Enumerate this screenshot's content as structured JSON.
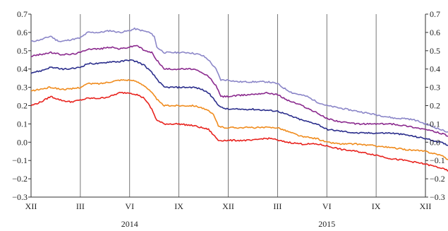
{
  "chart_data": {
    "type": "line",
    "title": "",
    "xlabel": "",
    "ylabel": "",
    "ylim": [
      -0.3,
      0.7
    ],
    "yticks": [
      "0.7",
      "0.6",
      "0.5",
      "0.4",
      "0.3",
      "0.2",
      "0.1",
      "0.0",
      "-0.1",
      "-0.2",
      "-0.3"
    ],
    "x_tick_labels": [
      "XII",
      "III",
      "VI",
      "IX",
      "XII",
      "III",
      "VI",
      "IX",
      "XII"
    ],
    "year_labels": [
      {
        "label": "2014",
        "at_tick": 2
      },
      {
        "label": "2015",
        "at_tick": 6
      }
    ],
    "grid": "vertical",
    "right_axis_mirrors_left": true,
    "series": [
      {
        "color": "#8b86c8",
        "values": [
          [
            0,
            0.55
          ],
          [
            0.2,
            0.56
          ],
          [
            0.4,
            0.58
          ],
          [
            0.5,
            0.56
          ],
          [
            0.6,
            0.55
          ],
          [
            0.8,
            0.56
          ],
          [
            1,
            0.57
          ],
          [
            1.15,
            0.6
          ],
          [
            1.4,
            0.6
          ],
          [
            1.6,
            0.61
          ],
          [
            1.8,
            0.6
          ],
          [
            2,
            0.61
          ],
          [
            2.1,
            0.62
          ],
          [
            2.25,
            0.61
          ],
          [
            2.4,
            0.6
          ],
          [
            2.5,
            0.58
          ],
          [
            2.55,
            0.52
          ],
          [
            2.7,
            0.49
          ],
          [
            3,
            0.49
          ],
          [
            3.2,
            0.49
          ],
          [
            3.4,
            0.48
          ],
          [
            3.5,
            0.47
          ],
          [
            3.6,
            0.45
          ],
          [
            3.75,
            0.4
          ],
          [
            3.85,
            0.34
          ],
          [
            4,
            0.34
          ],
          [
            4.2,
            0.33
          ],
          [
            4.5,
            0.33
          ],
          [
            4.8,
            0.33
          ],
          [
            5,
            0.32
          ],
          [
            5.1,
            0.3
          ],
          [
            5.3,
            0.27
          ],
          [
            5.6,
            0.25
          ],
          [
            5.8,
            0.22
          ],
          [
            6,
            0.2
          ],
          [
            6.2,
            0.19
          ],
          [
            6.4,
            0.18
          ],
          [
            6.6,
            0.17
          ],
          [
            6.8,
            0.16
          ],
          [
            7,
            0.15
          ],
          [
            7.2,
            0.14
          ],
          [
            7.4,
            0.13
          ],
          [
            7.6,
            0.13
          ],
          [
            7.8,
            0.12
          ],
          [
            8,
            0.1
          ],
          [
            8.2,
            0.08
          ],
          [
            8.4,
            0.06
          ],
          [
            8.6,
            0.05
          ],
          [
            8.8,
            0.06
          ],
          [
            9,
            0.06
          ]
        ]
      },
      {
        "color": "#8b2a8e",
        "values": [
          [
            0,
            0.47
          ],
          [
            0.2,
            0.48
          ],
          [
            0.4,
            0.49
          ],
          [
            0.6,
            0.48
          ],
          [
            0.8,
            0.48
          ],
          [
            1,
            0.49
          ],
          [
            1.15,
            0.51
          ],
          [
            1.4,
            0.51
          ],
          [
            1.6,
            0.52
          ],
          [
            1.8,
            0.51
          ],
          [
            2,
            0.52
          ],
          [
            2.15,
            0.53
          ],
          [
            2.3,
            0.5
          ],
          [
            2.45,
            0.49
          ],
          [
            2.55,
            0.45
          ],
          [
            2.7,
            0.4
          ],
          [
            3,
            0.4
          ],
          [
            3.3,
            0.4
          ],
          [
            3.45,
            0.38
          ],
          [
            3.6,
            0.36
          ],
          [
            3.75,
            0.31
          ],
          [
            3.85,
            0.25
          ],
          [
            4,
            0.25
          ],
          [
            4.4,
            0.26
          ],
          [
            4.8,
            0.27
          ],
          [
            5,
            0.26
          ],
          [
            5.2,
            0.23
          ],
          [
            5.5,
            0.2
          ],
          [
            5.8,
            0.16
          ],
          [
            6,
            0.13
          ],
          [
            6.3,
            0.11
          ],
          [
            6.6,
            0.1
          ],
          [
            7,
            0.1
          ],
          [
            7.3,
            0.1
          ],
          [
            7.6,
            0.09
          ],
          [
            8,
            0.07
          ],
          [
            8.3,
            0.05
          ],
          [
            8.5,
            0.03
          ],
          [
            8.7,
            0.01
          ],
          [
            9,
            0.0
          ]
        ]
      },
      {
        "color": "#2b2e8c",
        "values": [
          [
            0,
            0.38
          ],
          [
            0.2,
            0.39
          ],
          [
            0.4,
            0.41
          ],
          [
            0.6,
            0.4
          ],
          [
            0.8,
            0.4
          ],
          [
            1,
            0.41
          ],
          [
            1.15,
            0.43
          ],
          [
            1.4,
            0.43
          ],
          [
            1.6,
            0.44
          ],
          [
            1.8,
            0.44
          ],
          [
            2,
            0.45
          ],
          [
            2.15,
            0.44
          ],
          [
            2.3,
            0.42
          ],
          [
            2.45,
            0.38
          ],
          [
            2.6,
            0.33
          ],
          [
            2.7,
            0.3
          ],
          [
            3,
            0.3
          ],
          [
            3.3,
            0.3
          ],
          [
            3.45,
            0.29
          ],
          [
            3.6,
            0.27
          ],
          [
            3.75,
            0.22
          ],
          [
            3.85,
            0.19
          ],
          [
            4,
            0.18
          ],
          [
            4.5,
            0.18
          ],
          [
            5,
            0.17
          ],
          [
            5.2,
            0.15
          ],
          [
            5.5,
            0.12
          ],
          [
            5.8,
            0.1
          ],
          [
            6,
            0.07
          ],
          [
            6.3,
            0.06
          ],
          [
            6.6,
            0.05
          ],
          [
            7,
            0.05
          ],
          [
            7.3,
            0.05
          ],
          [
            7.6,
            0.04
          ],
          [
            8,
            0.02
          ],
          [
            8.3,
            0.0
          ],
          [
            8.5,
            -0.02
          ],
          [
            8.7,
            -0.04
          ],
          [
            9,
            -0.04
          ]
        ]
      },
      {
        "color": "#f08c1e",
        "values": [
          [
            0,
            0.28
          ],
          [
            0.2,
            0.29
          ],
          [
            0.4,
            0.3
          ],
          [
            0.6,
            0.29
          ],
          [
            0.8,
            0.29
          ],
          [
            1,
            0.3
          ],
          [
            1.15,
            0.32
          ],
          [
            1.4,
            0.32
          ],
          [
            1.6,
            0.33
          ],
          [
            1.8,
            0.34
          ],
          [
            2,
            0.34
          ],
          [
            2.15,
            0.33
          ],
          [
            2.3,
            0.31
          ],
          [
            2.45,
            0.27
          ],
          [
            2.6,
            0.22
          ],
          [
            2.7,
            0.2
          ],
          [
            3,
            0.2
          ],
          [
            3.3,
            0.2
          ],
          [
            3.45,
            0.19
          ],
          [
            3.6,
            0.17
          ],
          [
            3.7,
            0.15
          ],
          [
            3.8,
            0.09
          ],
          [
            3.9,
            0.08
          ],
          [
            4.2,
            0.08
          ],
          [
            4.6,
            0.08
          ],
          [
            5,
            0.08
          ],
          [
            5.2,
            0.06
          ],
          [
            5.5,
            0.03
          ],
          [
            5.8,
            0.02
          ],
          [
            6,
            0.0
          ],
          [
            6.3,
            -0.01
          ],
          [
            6.6,
            -0.01
          ],
          [
            7,
            -0.02
          ],
          [
            7.3,
            -0.03
          ],
          [
            7.6,
            -0.04
          ],
          [
            8,
            -0.05
          ],
          [
            8.3,
            -0.07
          ],
          [
            8.5,
            -0.1
          ],
          [
            8.7,
            -0.13
          ],
          [
            9,
            -0.13
          ]
        ]
      },
      {
        "color": "#e8231e",
        "values": [
          [
            0,
            0.2
          ],
          [
            0.2,
            0.22
          ],
          [
            0.4,
            0.25
          ],
          [
            0.6,
            0.23
          ],
          [
            0.8,
            0.22
          ],
          [
            1,
            0.23
          ],
          [
            1.15,
            0.24
          ],
          [
            1.4,
            0.24
          ],
          [
            1.6,
            0.25
          ],
          [
            1.8,
            0.27
          ],
          [
            2,
            0.27
          ],
          [
            2.15,
            0.26
          ],
          [
            2.3,
            0.24
          ],
          [
            2.45,
            0.18
          ],
          [
            2.55,
            0.12
          ],
          [
            2.7,
            0.1
          ],
          [
            3,
            0.1
          ],
          [
            3.3,
            0.09
          ],
          [
            3.45,
            0.08
          ],
          [
            3.6,
            0.07
          ],
          [
            3.7,
            0.04
          ],
          [
            3.8,
            0.01
          ],
          [
            3.9,
            0.01
          ],
          [
            4.2,
            0.01
          ],
          [
            4.5,
            0.01
          ],
          [
            4.7,
            0.02
          ],
          [
            4.9,
            0.02
          ],
          [
            5,
            0.01
          ],
          [
            5.2,
            0.0
          ],
          [
            5.5,
            -0.01
          ],
          [
            5.8,
            -0.01
          ],
          [
            6,
            -0.02
          ],
          [
            6.3,
            -0.04
          ],
          [
            6.6,
            -0.05
          ],
          [
            7,
            -0.07
          ],
          [
            7.3,
            -0.09
          ],
          [
            7.6,
            -0.1
          ],
          [
            8,
            -0.12
          ],
          [
            8.3,
            -0.14
          ],
          [
            8.5,
            -0.16
          ],
          [
            8.7,
            -0.19
          ],
          [
            9,
            -0.21
          ]
        ]
      }
    ]
  }
}
